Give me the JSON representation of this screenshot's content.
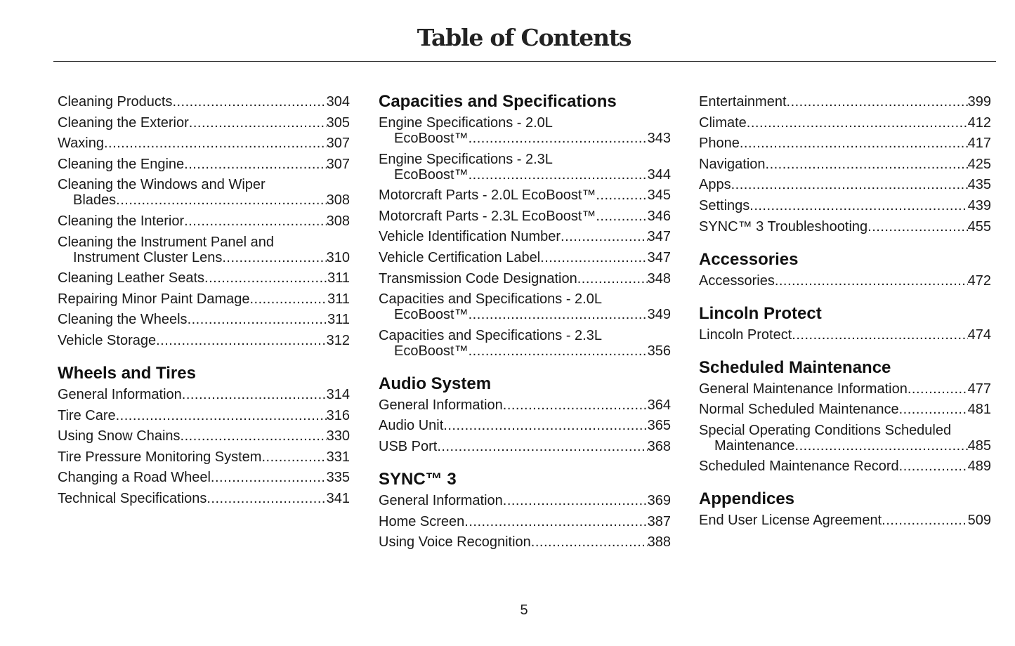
{
  "title": "Table of Contents",
  "page_number": "5",
  "columns": [
    [
      {
        "heading": "",
        "entries": [
          {
            "title": "Cleaning Products",
            "page": "304"
          },
          {
            "title": "Cleaning the Exterior",
            "page": "305"
          },
          {
            "title": "Waxing",
            "page": "307"
          },
          {
            "title": "Cleaning the Engine",
            "page": "307"
          },
          {
            "title": "Cleaning the Windows and Wiper",
            "title2": "Blades",
            "page": "308"
          },
          {
            "title": "Cleaning the Interior",
            "page": "308"
          },
          {
            "title": "Cleaning the Instrument Panel and",
            "title2": "Instrument Cluster Lens",
            "page": "310"
          },
          {
            "title": "Cleaning Leather Seats",
            "page": "311"
          },
          {
            "title": "Repairing Minor Paint Damage",
            "page": "311"
          },
          {
            "title": "Cleaning the Wheels",
            "page": "311"
          },
          {
            "title": "Vehicle Storage",
            "page": "312"
          }
        ]
      },
      {
        "heading": "Wheels and Tires",
        "entries": [
          {
            "title": "General Information",
            "page": "314"
          },
          {
            "title": "Tire Care",
            "page": "316"
          },
          {
            "title": "Using Snow Chains",
            "page": "330"
          },
          {
            "title": "Tire Pressure Monitoring System",
            "page": "331"
          },
          {
            "title": "Changing a Road Wheel",
            "page": "335"
          },
          {
            "title": "Technical Specifications",
            "page": "341"
          }
        ]
      }
    ],
    [
      {
        "heading": "Capacities and Specifications",
        "entries": [
          {
            "title": "Engine Specifications - 2.0L",
            "title2": "EcoBoost™",
            "page": "343"
          },
          {
            "title": "Engine Specifications - 2.3L",
            "title2": "EcoBoost™",
            "page": "344"
          },
          {
            "title": "Motorcraft Parts - 2.0L EcoBoost™",
            "page": "345"
          },
          {
            "title": "Motorcraft Parts - 2.3L EcoBoost™",
            "page": "346"
          },
          {
            "title": "Vehicle Identification Number",
            "page": "347"
          },
          {
            "title": "Vehicle Certification Label",
            "page": "347"
          },
          {
            "title": "Transmission Code Designation",
            "page": "348"
          },
          {
            "title": "Capacities and Specifications - 2.0L",
            "title2": "EcoBoost™",
            "page": "349"
          },
          {
            "title": "Capacities and Specifications - 2.3L",
            "title2": "EcoBoost™",
            "page": "356"
          }
        ]
      },
      {
        "heading": "Audio System",
        "entries": [
          {
            "title": "General Information",
            "page": "364"
          },
          {
            "title": "Audio Unit",
            "page": "365"
          },
          {
            "title": "USB Port",
            "page": "368"
          }
        ]
      },
      {
        "heading": "SYNC™ 3",
        "entries": [
          {
            "title": "General Information",
            "page": "369"
          },
          {
            "title": "Home Screen",
            "page": "387"
          },
          {
            "title": "Using Voice Recognition",
            "page": "388"
          }
        ]
      }
    ],
    [
      {
        "heading": "",
        "entries": [
          {
            "title": "Entertainment",
            "page": "399"
          },
          {
            "title": "Climate",
            "page": "412"
          },
          {
            "title": "Phone",
            "page": "417"
          },
          {
            "title": "Navigation",
            "page": "425"
          },
          {
            "title": "Apps",
            "page": "435"
          },
          {
            "title": "Settings",
            "page": "439"
          },
          {
            "title": "SYNC™ 3 Troubleshooting",
            "page": "455"
          }
        ]
      },
      {
        "heading": "Accessories",
        "entries": [
          {
            "title": "Accessories",
            "page": "472"
          }
        ]
      },
      {
        "heading": "Lincoln Protect",
        "entries": [
          {
            "title": "Lincoln Protect",
            "page": "474"
          }
        ]
      },
      {
        "heading": "Scheduled Maintenance",
        "entries": [
          {
            "title": "General Maintenance Information",
            "page": "477"
          },
          {
            "title": "Normal Scheduled Maintenance",
            "page": "481"
          },
          {
            "title": "Special Operating Conditions Scheduled",
            "title2": "Maintenance",
            "page": "485"
          },
          {
            "title": "Scheduled Maintenance Record",
            "page": "489"
          }
        ]
      },
      {
        "heading": "Appendices",
        "entries": [
          {
            "title": "End User License Agreement",
            "page": "509"
          }
        ]
      }
    ]
  ]
}
